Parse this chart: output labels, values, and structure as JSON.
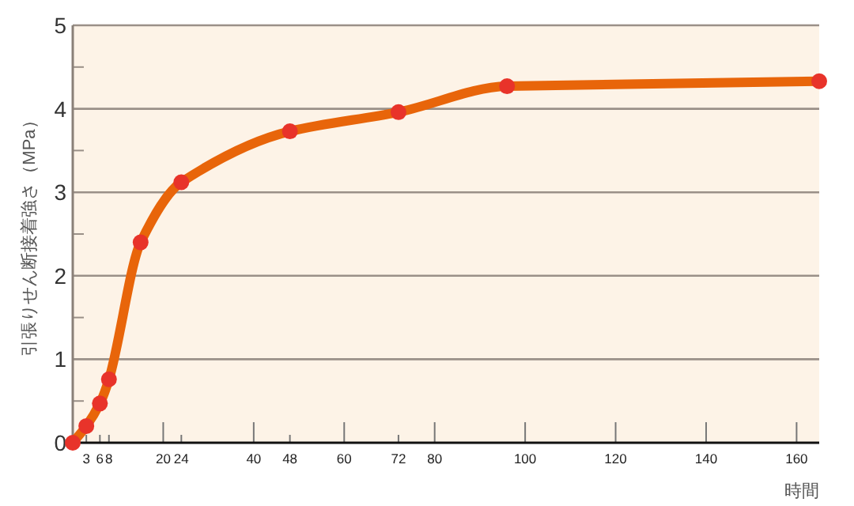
{
  "chart_data": {
    "type": "line",
    "ylabel": "引張りせん断接着強さ（MPa）",
    "xlabel": "時間",
    "x": [
      0,
      3,
      6,
      8,
      15,
      24,
      48,
      72,
      96,
      165
    ],
    "series": [
      {
        "color": "#e8650a",
        "values": [
          0,
          0.2,
          0.47,
          0.76,
          2.4,
          3.12,
          3.73,
          3.96,
          4.27,
          4.33
        ]
      }
    ],
    "marker": "circle",
    "line_style": "solid",
    "grid": "y",
    "xlim": [
      0,
      165
    ],
    "ylim": [
      0,
      5
    ],
    "xticks": [
      {
        "value": 3,
        "label": "3"
      },
      {
        "value": 6,
        "label": "6"
      },
      {
        "value": 8,
        "label": "8"
      },
      20,
      {
        "value": 24,
        "label": "24"
      },
      40,
      {
        "value": 48,
        "label": "48"
      },
      60,
      {
        "value": 72,
        "label": "72"
      },
      80,
      100,
      120,
      140,
      160
    ],
    "yticks": [
      0,
      {
        "value": 0.5,
        "label": null
      },
      1,
      {
        "value": 1.5,
        "label": null
      },
      2,
      {
        "value": 2.5,
        "label": null
      },
      3,
      {
        "value": 3.5,
        "label": null
      },
      4,
      {
        "value": 4.5,
        "label": null
      },
      5
    ]
  }
}
